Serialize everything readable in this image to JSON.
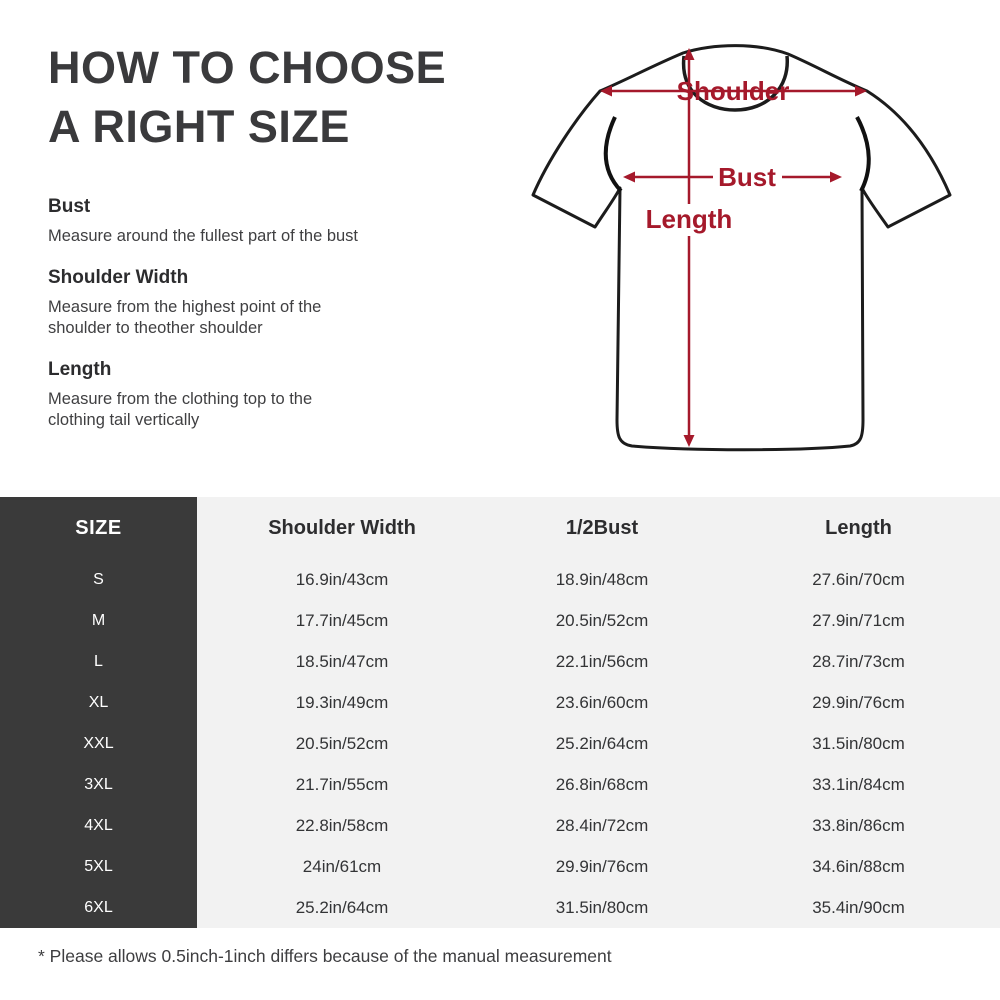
{
  "page": {
    "title_line1": "HOW TO CHOOSE",
    "title_line2": "A RIGHT SIZE",
    "footnote": "* Please allows 0.5inch-1inch differs because of the  manual measurement"
  },
  "instructions": [
    {
      "heading": "Bust",
      "description": "Measure around the fullest part of the bust"
    },
    {
      "heading": "Shoulder Width",
      "description": "Measure from the highest point of the\nshoulder to theother shoulder"
    },
    {
      "heading": "Length",
      "description": "Measure from the clothing top to the\nclothing tail vertically"
    }
  ],
  "diagram": {
    "labels": {
      "shoulder": "Shoulder",
      "bust": "Bust",
      "length": "Length"
    }
  },
  "size_table": {
    "columns": [
      "SIZE",
      "Shoulder Width",
      "1/2Bust",
      "Length"
    ],
    "rows": [
      [
        "S",
        "16.9in/43cm",
        "18.9in/48cm",
        "27.6in/70cm"
      ],
      [
        "M",
        "17.7in/45cm",
        "20.5in/52cm",
        "27.9in/71cm"
      ],
      [
        "L",
        "18.5in/47cm",
        "22.1in/56cm",
        "28.7in/73cm"
      ],
      [
        "XL",
        "19.3in/49cm",
        "23.6in/60cm",
        "29.9in/76cm"
      ],
      [
        "XXL",
        "20.5in/52cm",
        "25.2in/64cm",
        "31.5in/80cm"
      ],
      [
        "3XL",
        "21.7in/55cm",
        "26.8in/68cm",
        "33.1in/84cm"
      ],
      [
        "4XL",
        "22.8in/58cm",
        "28.4in/72cm",
        "33.8in/86cm"
      ],
      [
        "5XL",
        "24in/61cm",
        "29.9in/76cm",
        "34.6in/88cm"
      ],
      [
        "6XL",
        "25.2in/64cm",
        "31.5in/80cm",
        "35.4in/90cm"
      ]
    ]
  },
  "colors": {
    "accent_red": "#a5192b",
    "outline_black": "#1c1c1c",
    "table_dark": "#3a3a3a",
    "table_light": "#f2f2f2",
    "text_dark": "#3a3a3c"
  }
}
